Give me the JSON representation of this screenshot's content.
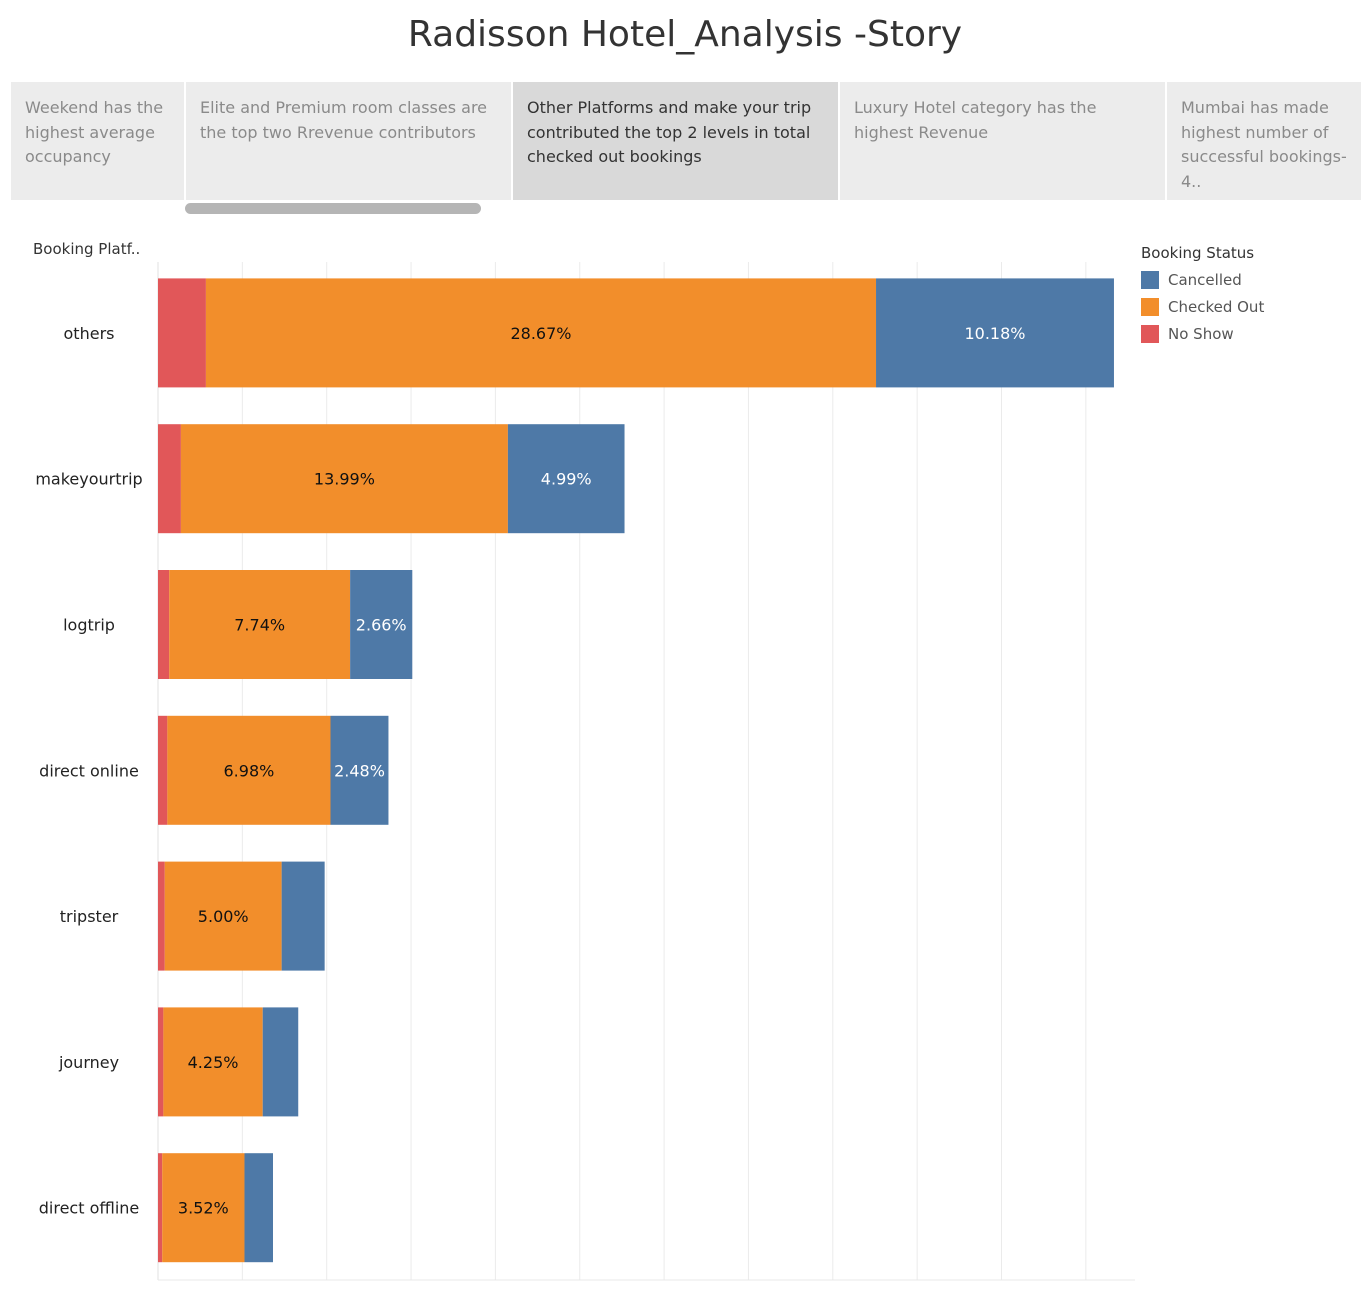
{
  "story": {
    "title": "Radisson Hotel_Analysis -Story",
    "tabs": [
      {
        "label": "Weekend has the highest average occupancy",
        "active": false
      },
      {
        "label": "Elite and Premium room classes are the top two Rrevenue contributors",
        "active": false
      },
      {
        "label": "Other Platforms and make your trip contributed the top 2 levels in total checked out  bookings",
        "active": true
      },
      {
        "label": "Luxury Hotel category has the highest Revenue",
        "active": false
      },
      {
        "label": "Mumbai has made highest number of successful bookings-4..",
        "active": false
      }
    ]
  },
  "chart_data": {
    "type": "bar",
    "orientation": "horizontal",
    "stacked": true,
    "y_axis_label": "Booking Platf..",
    "categories": [
      "others",
      "makeyourtrip",
      "logtrip",
      "direct online",
      "tripster",
      "journey",
      "direct offline"
    ],
    "series": [
      {
        "name": "No Show",
        "color": "#e15759",
        "values": [
          2.05,
          0.98,
          0.48,
          0.4,
          0.29,
          0.23,
          0.18
        ]
      },
      {
        "name": "Checked Out",
        "color": "#f28e2b",
        "values": [
          28.67,
          13.99,
          7.74,
          6.98,
          5.0,
          4.25,
          3.52
        ],
        "labels": [
          "28.67%",
          "13.99%",
          "7.74%",
          "6.98%",
          "5.00%",
          "4.25%",
          "3.52%"
        ]
      },
      {
        "name": "Cancelled",
        "color": "#4e79a7",
        "values": [
          10.18,
          4.99,
          2.66,
          2.48,
          1.84,
          1.52,
          1.22
        ],
        "labels": [
          "10.18%",
          "4.99%",
          "2.66%",
          "2.48%",
          "",
          "",
          ""
        ]
      }
    ],
    "x_range": [
      0,
      41.8
    ],
    "gridlines": true,
    "legend": {
      "title": "Booking Status",
      "position": "right",
      "items": [
        "Cancelled",
        "Checked Out",
        "No Show"
      ]
    }
  }
}
